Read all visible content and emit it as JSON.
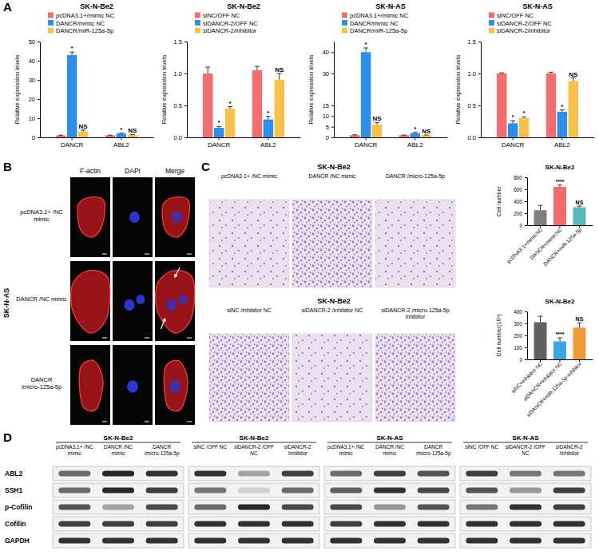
{
  "panel_labels": [
    "A",
    "B",
    "C",
    "D"
  ],
  "chart_data": [
    {
      "type": "bar",
      "title": "SK-N-Be2",
      "y_label": "Relative expression levels",
      "categories": [
        "DANCR",
        "ABL2"
      ],
      "series": [
        {
          "name": "pcDNA3.1+/mimic NC",
          "color": "#f26d6d",
          "values": [
            1,
            1
          ],
          "errors": [
            0.15,
            0.15
          ]
        },
        {
          "name": "DANCR/mimic NC",
          "color": "#2f8fe8",
          "values": [
            43,
            2
          ],
          "errors": [
            1.5,
            0.2
          ],
          "annotations": [
            "*",
            "*"
          ]
        },
        {
          "name": "DANCR/miR-125a-5p",
          "color": "#f7c24a",
          "values": [
            3,
            1.2
          ],
          "errors": [
            0.8,
            0.3
          ],
          "annotations": [
            "NS",
            "NS"
          ]
        }
      ],
      "ylim": [
        0,
        50
      ],
      "yticks": [
        0,
        10,
        20,
        30,
        40,
        50
      ],
      "legend": "top"
    },
    {
      "type": "bar",
      "title": "SK-N-Be2",
      "y_label": "Relative expression levels",
      "categories": [
        "DANCR",
        "ABL2"
      ],
      "series": [
        {
          "name": "siNC/OFF NC",
          "color": "#f26d6d",
          "values": [
            1.0,
            1.05
          ],
          "errors": [
            0.1,
            0.06
          ]
        },
        {
          "name": "siDANCR-2/OFF NC",
          "color": "#2f8fe8",
          "values": [
            0.15,
            0.28
          ],
          "errors": [
            0.02,
            0.05
          ],
          "annotations": [
            "*",
            "*"
          ]
        },
        {
          "name": "siDANCR-2/inhibitor",
          "color": "#f7c24a",
          "values": [
            0.45,
            0.9
          ],
          "errors": [
            0.03,
            0.1
          ],
          "annotations": [
            "*",
            "NS"
          ]
        }
      ],
      "ylim": [
        0,
        1.5
      ],
      "yticks": [
        {
          "value": 0,
          "label": "0.0"
        },
        0.5,
        {
          "value": 1,
          "label": "1.0"
        },
        1.5
      ],
      "legend": "top"
    },
    {
      "type": "bar",
      "title": "SK-N-AS",
      "y_label": "Relative expression levels",
      "categories": [
        "DANCR",
        "ABL2"
      ],
      "series": [
        {
          "name": "pcDNA3.1+/mimic NC",
          "color": "#f26d6d",
          "values": [
            1,
            1
          ],
          "errors": [
            0.2,
            0.1
          ]
        },
        {
          "name": "DANCR/mimic NC",
          "color": "#2f8fe8",
          "values": [
            40,
            2
          ],
          "errors": [
            2,
            0.3
          ],
          "annotations": [
            "*",
            "*"
          ]
        },
        {
          "name": "DANCR/miR-125a-5p",
          "color": "#f7c24a",
          "values": [
            6,
            1
          ],
          "errors": [
            1,
            0.1
          ],
          "annotations": [
            "NS",
            "NS"
          ]
        }
      ],
      "ylim": [
        0,
        45
      ],
      "yticks": [
        0,
        5,
        10,
        15,
        30,
        40
      ],
      "legend": "top"
    },
    {
      "type": "bar",
      "title": "SK-N-AS",
      "y_label": "Relative expression levels",
      "categories": [
        "DANCR",
        "ABL2"
      ],
      "series": [
        {
          "name": "siNC/OFF NC",
          "color": "#f26d6d",
          "values": [
            1,
            1
          ],
          "errors": [
            0.01,
            0.02
          ]
        },
        {
          "name": "siDANCR-2/OFF NC",
          "color": "#2f8fe8",
          "values": [
            0.22,
            0.4
          ],
          "errors": [
            0.04,
            0.03
          ],
          "annotations": [
            "*",
            "*"
          ]
        },
        {
          "name": "siDANCR-2/inhibitor",
          "color": "#f7c24a",
          "values": [
            0.3,
            0.88
          ],
          "errors": [
            0.02,
            0.05
          ],
          "annotations": [
            "*",
            "NS"
          ]
        }
      ],
      "ylim": [
        0,
        1.5
      ],
      "yticks": [
        {
          "value": 0,
          "label": "0.0"
        },
        0.5,
        {
          "value": 1,
          "label": "1.0"
        },
        1.5
      ],
      "legend": "top"
    },
    {
      "type": "bar",
      "title": "SK-N-Be2",
      "y_label": "Cell number",
      "categories": [
        "pcDNA3.1+mimicNC",
        "DANCR+mimicNC",
        "DANCR+miR-125a-5p"
      ],
      "values": [
        250,
        640,
        300
      ],
      "errors": [
        80,
        30,
        20
      ],
      "colors": [
        "#7f7f7f",
        "#f26b6b",
        "#5bb6b6"
      ],
      "annotations": [
        null,
        "****",
        "NS"
      ],
      "ylim": [
        0,
        800
      ],
      "yticks": [
        0,
        200,
        400,
        600,
        800
      ]
    },
    {
      "type": "bar",
      "title": "SK-N-Be2",
      "y_label": "Cell number(10⁵)",
      "categories": [
        "siNC+inhibitor NC",
        "siDANCR+inhibitor NC",
        "siDANCR+miR-125a-5p-inhibitor"
      ],
      "values": [
        310,
        150,
        265
      ],
      "errors": [
        50,
        30,
        40
      ],
      "colors": [
        "#606060",
        "#3aa6e0",
        "#f29a3a"
      ],
      "annotations": [
        null,
        "****",
        "NS"
      ],
      "ylim": [
        0,
        400
      ],
      "yticks": [
        0,
        100,
        200,
        300,
        400
      ]
    }
  ],
  "immunofluorescence": {
    "cell_line": "SK-N-AS",
    "columns": [
      "F-actin",
      "DAPI",
      "Merge"
    ],
    "rows": [
      "pcDNA3.1+ /NC mimic",
      "DANCR /NC mimic",
      "DANCR /micro-125a-5p"
    ]
  },
  "transwell": [
    {
      "title": "SK-N-Be2",
      "columns": [
        "pcDNA3.1+ /NC mimic",
        "DANCR /NC mimic",
        "DANCR /micro-125a-5p"
      ]
    },
    {
      "title": "SK-N-Be2",
      "columns": [
        "siNC /inhibitor NC",
        "siDANCR-2 /inhibitor NC",
        "siDANCR-2 /micro-125a-5p inhibitor"
      ]
    }
  ],
  "western_blot": {
    "proteins": [
      "ABL2",
      "SSH1",
      "p-Cofilin",
      "Cofilin",
      "GAPDH"
    ],
    "groups": [
      {
        "title": "SK-N-Be2",
        "lanes": [
          "pcDNA3.1+ /NC mimic",
          "DANCR /NC mimic",
          "DANCR /micro-125a-5p"
        ],
        "intensity": [
          [
            0.6,
            0.9,
            0.85
          ],
          [
            0.6,
            0.9,
            0.8
          ],
          [
            0.7,
            0.35,
            0.75
          ],
          [
            0.8,
            0.8,
            0.8
          ],
          [
            0.85,
            0.85,
            0.85
          ]
        ]
      },
      {
        "title": "SK-N-Be2",
        "lanes": [
          "siNC /OFF NC",
          "siDANCR-2 /OFF NC",
          "siDANCR-2 /inhibitor"
        ],
        "intensity": [
          [
            0.85,
            0.35,
            0.8
          ],
          [
            0.55,
            0.15,
            0.6
          ],
          [
            0.6,
            0.9,
            0.75
          ],
          [
            0.85,
            0.85,
            0.85
          ],
          [
            0.85,
            0.85,
            0.85
          ]
        ]
      },
      {
        "title": "SK-N-AS",
        "lanes": [
          "pcDNA3.1+ /NC mimic",
          "DANCR /NC mimic",
          "DANCR /micro-125a-5p"
        ],
        "intensity": [
          [
            0.6,
            0.8,
            0.7
          ],
          [
            0.65,
            0.85,
            0.75
          ],
          [
            0.75,
            0.4,
            0.7
          ],
          [
            0.8,
            0.85,
            0.85
          ],
          [
            0.85,
            0.85,
            0.85
          ]
        ]
      },
      {
        "title": "SK-N-AS",
        "lanes": [
          "siNC /OFF NC",
          "siDANCR-2 /OFF NC",
          "siDANCR-2 /inhibitor"
        ],
        "intensity": [
          [
            0.8,
            0.55,
            0.55
          ],
          [
            0.7,
            0.4,
            0.8
          ],
          [
            0.55,
            0.85,
            0.8
          ],
          [
            0.85,
            0.85,
            0.85
          ],
          [
            0.85,
            0.85,
            0.85
          ]
        ]
      }
    ]
  }
}
